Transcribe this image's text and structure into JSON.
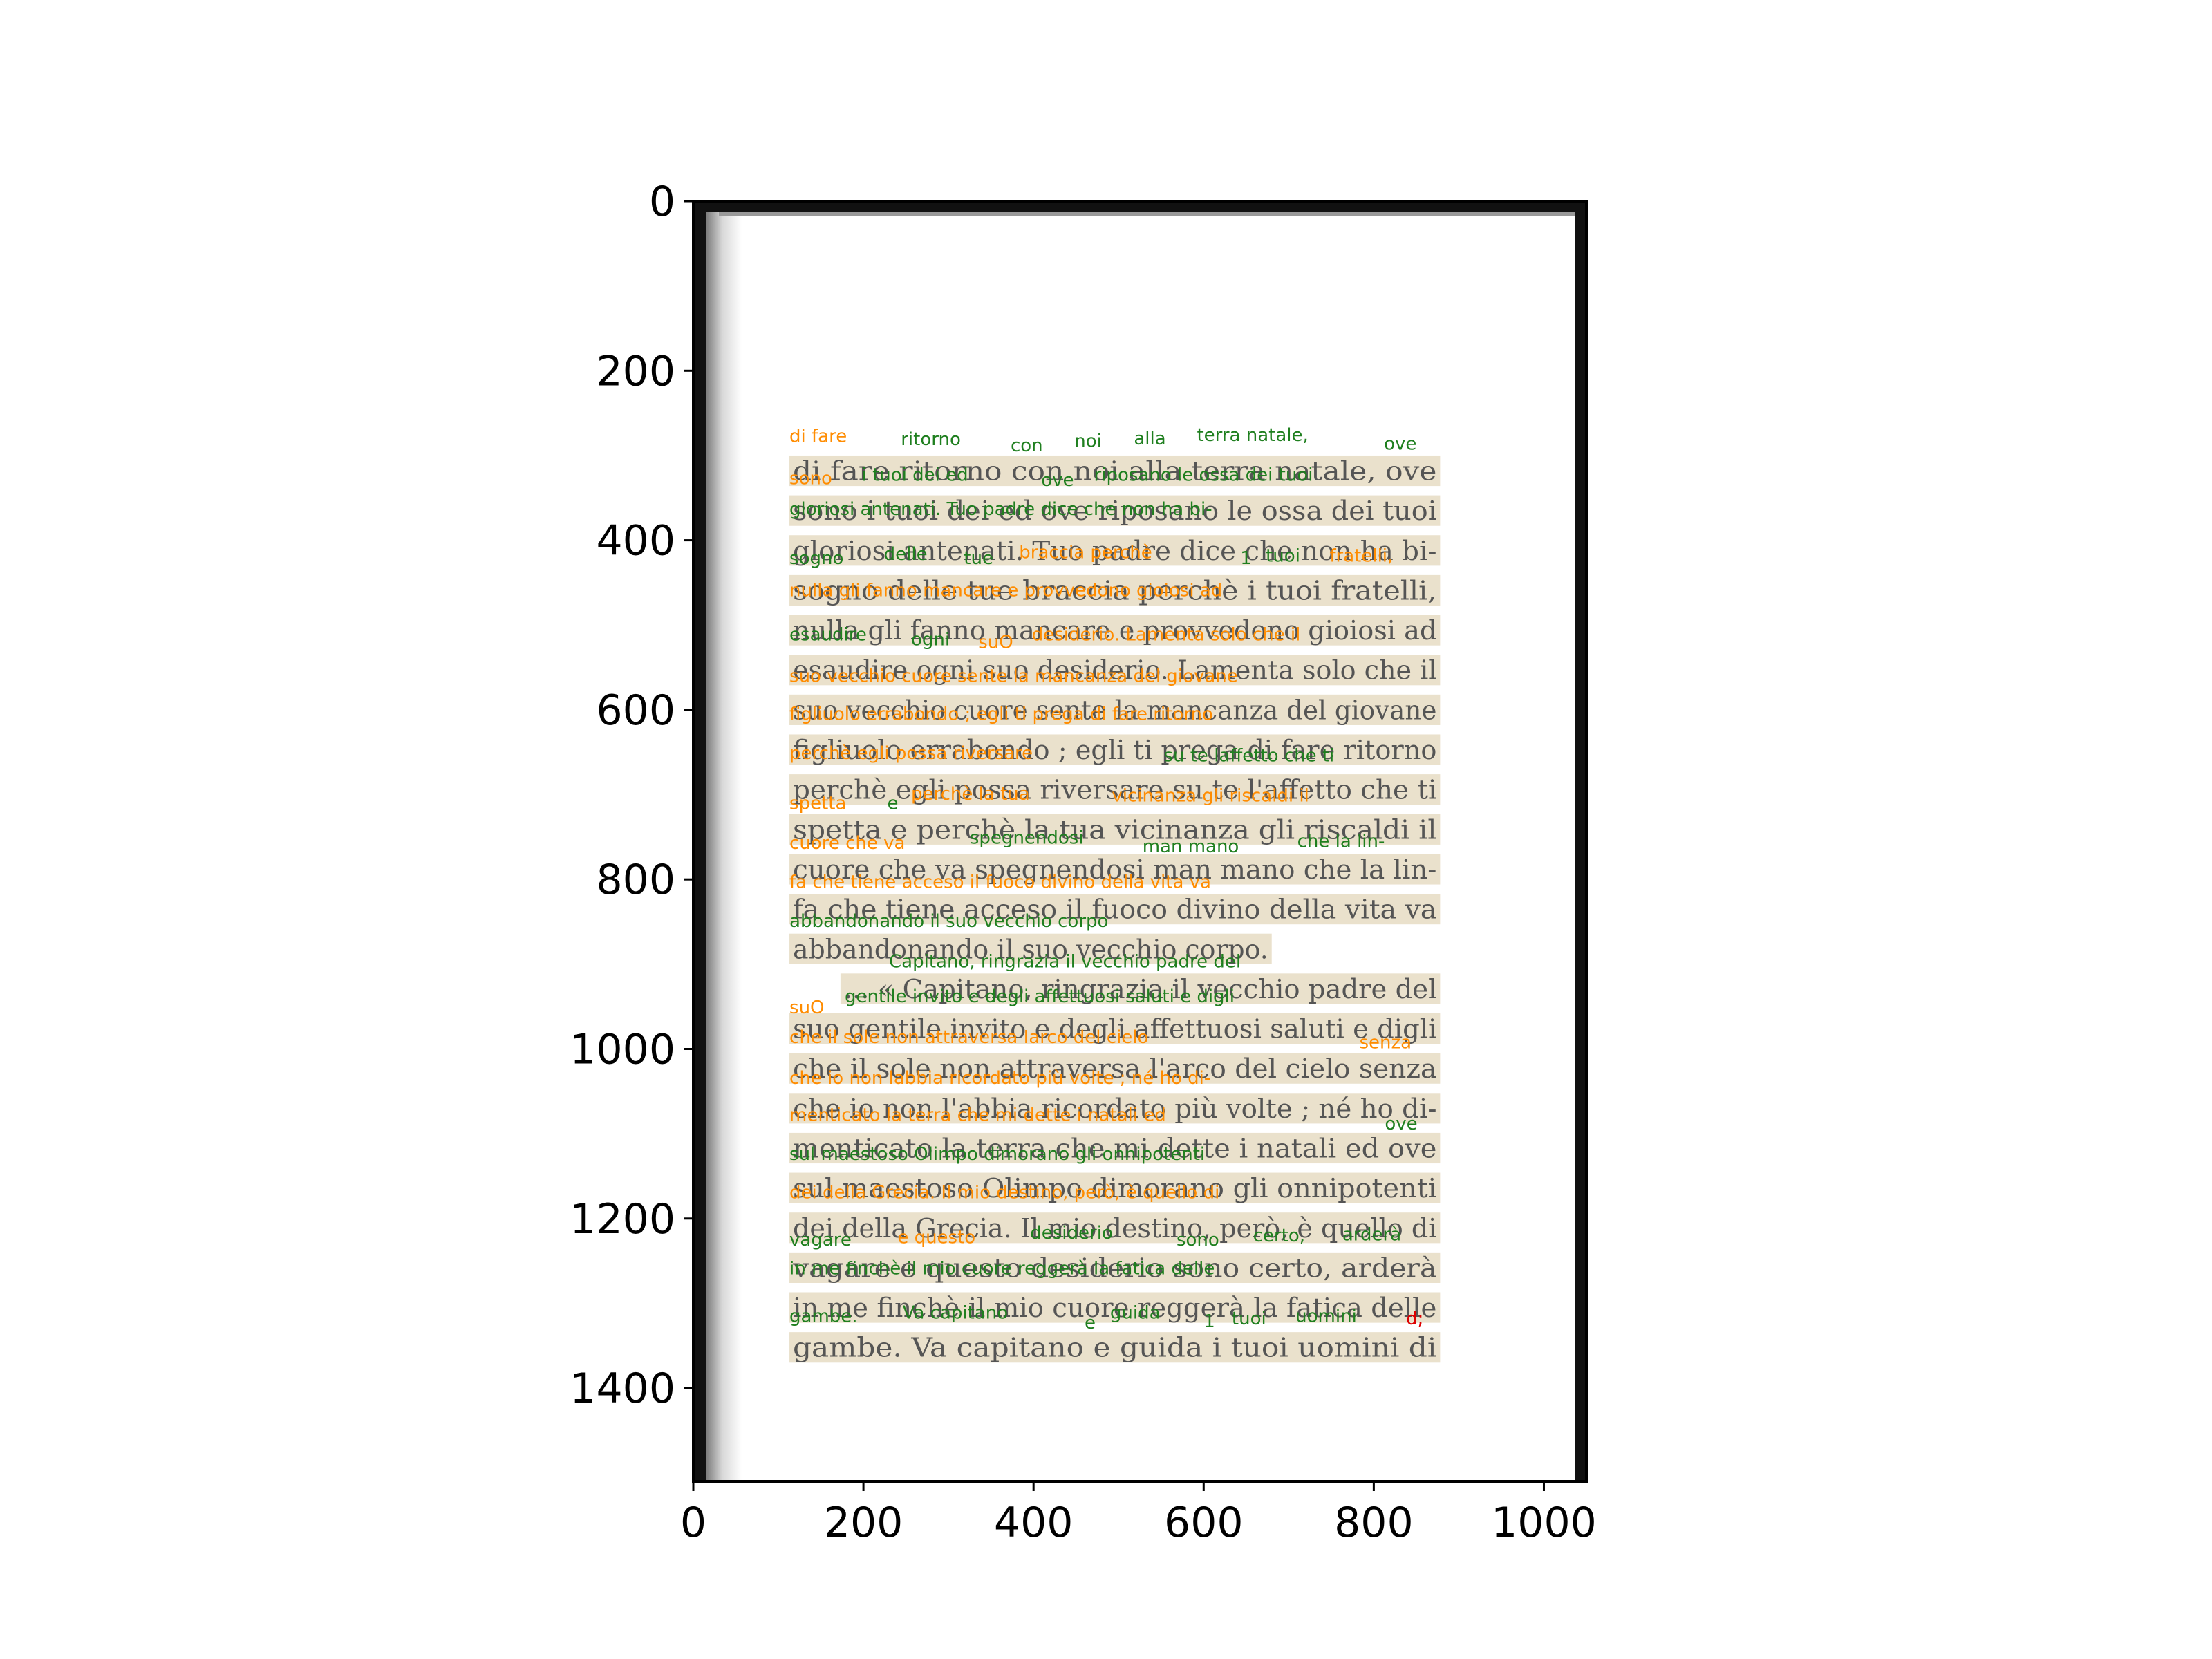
{
  "axes": {
    "x_range": [
      0,
      1050
    ],
    "y_range": [
      1510,
      0
    ],
    "x_ticks": [
      "0",
      "200",
      "400",
      "600",
      "800",
      "1000"
    ],
    "y_ticks": [
      "0",
      "200",
      "400",
      "600",
      "800",
      "1000",
      "1200",
      "1400"
    ]
  },
  "colors": {
    "green": "#1f7f1f",
    "orange": "#ff8c00",
    "red": "#dd0000",
    "box_fill": "#e6dcc3",
    "page_text": "#555555"
  },
  "page_lines": [
    "di fare ritorno con noi alla terra natale, ove",
    "sono i tuoi dei ed ove riposano le ossa dei tuoi",
    "gloriosi antenati. Tuo padre dice che non ha bi-",
    "sogno delle tue braccia perchè i tuoi fratelli,",
    "nulla gli fanno mancare e provvedono gioiosi ad",
    "esaudire ogni suo desiderio. Lamenta solo che il",
    "suo vecchio cuore sente la mancanza del giovane",
    "figliuolo errabondo ; egli ti prega di fare ritorno",
    "perchè egli possa riversare su te l'affetto che ti",
    "spetta e perchè la tua vicinanza gli riscaldi il",
    "cuore che va spegnendosi man mano che la lin-",
    "fa che tiene acceso il fuoco divino della vita va",
    "abbandonando il suo vecchio corpo.",
    "... « Capitano, ringrazia il vecchio padre del",
    "suo gentile invito e degli affettuosi saluti e digli",
    "che il sole non attraversa l'arco del cielo senza",
    "che io non l'abbia ricordato più volte ; né ho di-",
    "menticato la terra che mi dette i natali ed ove",
    "sul maestoso Olimpo dimorano gli onnipotenti",
    "dei della Grecia. Il mio destino, però, è quello di",
    "vagare e questo desiderio sono certo, arderà",
    "in me finchè il mio cuore reggerà la fatica delle",
    "gambe. Va capitano e guida i tuoi uomini di"
  ],
  "ocr_labels": [
    {
      "text": "di fare",
      "color": "orange",
      "x": 113,
      "y": 284
    },
    {
      "text": "ritorno",
      "color": "green",
      "x": 244,
      "y": 288
    },
    {
      "text": "con",
      "color": "green",
      "x": 373,
      "y": 295
    },
    {
      "text": "noi",
      "color": "green",
      "x": 448,
      "y": 290
    },
    {
      "text": "alla",
      "color": "green",
      "x": 518,
      "y": 287
    },
    {
      "text": "terra natale,",
      "color": "green",
      "x": 592,
      "y": 283
    },
    {
      "text": "ove",
      "color": "green",
      "x": 812,
      "y": 293
    },
    {
      "text": "sono",
      "color": "orange",
      "x": 113,
      "y": 334
    },
    {
      "text": "i tuoi dei ed",
      "color": "green",
      "x": 198,
      "y": 330
    },
    {
      "text": "ove",
      "color": "green",
      "x": 409,
      "y": 336
    },
    {
      "text": "riposano le ossa dei tuoi",
      "color": "green",
      "x": 471,
      "y": 330
    },
    {
      "text": "gloriosi antenati. Tuo padre dice che non ha bi-",
      "color": "green",
      "x": 113,
      "y": 370
    },
    {
      "text": "sogno",
      "color": "green",
      "x": 113,
      "y": 428
    },
    {
      "text": "delle",
      "color": "green",
      "x": 224,
      "y": 423
    },
    {
      "text": "tue",
      "color": "green",
      "x": 318,
      "y": 428
    },
    {
      "text": "braccia perchè",
      "color": "orange",
      "x": 383,
      "y": 421
    },
    {
      "text": "1",
      "color": "green",
      "x": 643,
      "y": 428
    },
    {
      "text": "tuoi",
      "color": "green",
      "x": 673,
      "y": 425
    },
    {
      "text": "fratelli,",
      "color": "orange",
      "x": 748,
      "y": 425
    },
    {
      "text": "nulla gli fanno mancare e provvedono gioiosi ad",
      "color": "orange",
      "x": 113,
      "y": 466
    },
    {
      "text": "esaudire",
      "color": "green",
      "x": 113,
      "y": 518
    },
    {
      "text": "ogni",
      "color": "green",
      "x": 256,
      "y": 524
    },
    {
      "text": "suO",
      "color": "orange",
      "x": 335,
      "y": 527
    },
    {
      "text": "desiderio. Lamenta solo che il",
      "color": "orange",
      "x": 398,
      "y": 518
    },
    {
      "text": "suo vecchio cuore sente la mancanza del giovane",
      "color": "orange",
      "x": 113,
      "y": 567
    },
    {
      "text": "figliuolo errabondo ; egli ti prega di fare ritorno",
      "color": "orange",
      "x": 113,
      "y": 612
    },
    {
      "text": "perchè egli possa riversare",
      "color": "orange",
      "x": 113,
      "y": 658
    },
    {
      "text": "su te laffetto che ti",
      "color": "green",
      "x": 553,
      "y": 661
    },
    {
      "text": "spetta",
      "color": "orange",
      "x": 113,
      "y": 717
    },
    {
      "text": "e",
      "color": "green",
      "x": 228,
      "y": 717
    },
    {
      "text": "perchè la tua",
      "color": "orange",
      "x": 256,
      "y": 706
    },
    {
      "text": "vicinanza gli riscaldi il",
      "color": "orange",
      "x": 492,
      "y": 708
    },
    {
      "text": "cuore che va",
      "color": "orange",
      "x": 113,
      "y": 764
    },
    {
      "text": "spegnendosi",
      "color": "green",
      "x": 325,
      "y": 758
    },
    {
      "text": "man mano",
      "color": "green",
      "x": 528,
      "y": 768
    },
    {
      "text": "che la lin-",
      "color": "green",
      "x": 710,
      "y": 762
    },
    {
      "text": "fa che tiene acceso il fuoco divino della vita va",
      "color": "orange",
      "x": 113,
      "y": 810
    },
    {
      "text": "abbandonando il suo vecchio corpo",
      "color": "green",
      "x": 113,
      "y": 856
    },
    {
      "text": "Capitano, ringrazia il vecchio padre del",
      "color": "green",
      "x": 230,
      "y": 904
    },
    {
      "text": "suO",
      "color": "orange",
      "x": 113,
      "y": 958
    },
    {
      "text": "gentile invito e degli affettuosi saluti e digli",
      "color": "green",
      "x": 178,
      "y": 945
    },
    {
      "text": "che il sole non attraversa Iarco del cielo",
      "color": "orange",
      "x": 113,
      "y": 993
    },
    {
      "text": "senza",
      "color": "orange",
      "x": 783,
      "y": 999
    },
    {
      "text": "che io non labbia ricordato più volte ; né ho di-",
      "color": "orange",
      "x": 113,
      "y": 1041
    },
    {
      "text": "menticato la terra che mi dette i natali ed",
      "color": "orange",
      "x": 113,
      "y": 1085
    },
    {
      "text": "ove",
      "color": "green",
      "x": 813,
      "y": 1095
    },
    {
      "text": "sul maestoso Olimpo dimorano gli onnipotenti",
      "color": "green",
      "x": 113,
      "y": 1131
    },
    {
      "text": "dei della Grecia. Il mio destino, però, è quello di",
      "color": "orange",
      "x": 113,
      "y": 1176
    },
    {
      "text": "vagare",
      "color": "green",
      "x": 113,
      "y": 1232
    },
    {
      "text": "e questo",
      "color": "orange",
      "x": 240,
      "y": 1229
    },
    {
      "text": "desiderio",
      "color": "green",
      "x": 396,
      "y": 1224
    },
    {
      "text": "sono",
      "color": "green",
      "x": 568,
      "y": 1232
    },
    {
      "text": "certo,",
      "color": "green",
      "x": 658,
      "y": 1227
    },
    {
      "text": "arderà",
      "color": "green",
      "x": 763,
      "y": 1226
    },
    {
      "text": "in me finchè il mio cuore reggerà la fatica delle",
      "color": "green",
      "x": 113,
      "y": 1266
    },
    {
      "text": "gambe.",
      "color": "green",
      "x": 113,
      "y": 1322
    },
    {
      "text": "Va capitano",
      "color": "green",
      "x": 246,
      "y": 1318
    },
    {
      "text": "e",
      "color": "green",
      "x": 460,
      "y": 1330
    },
    {
      "text": "guida",
      "color": "green",
      "x": 490,
      "y": 1318
    },
    {
      "text": "1",
      "color": "green",
      "x": 600,
      "y": 1328
    },
    {
      "text": "tuoi",
      "color": "green",
      "x": 633,
      "y": 1325
    },
    {
      "text": "uomini",
      "color": "green",
      "x": 708,
      "y": 1322
    },
    {
      "text": "d;",
      "color": "red",
      "x": 838,
      "y": 1325
    }
  ]
}
